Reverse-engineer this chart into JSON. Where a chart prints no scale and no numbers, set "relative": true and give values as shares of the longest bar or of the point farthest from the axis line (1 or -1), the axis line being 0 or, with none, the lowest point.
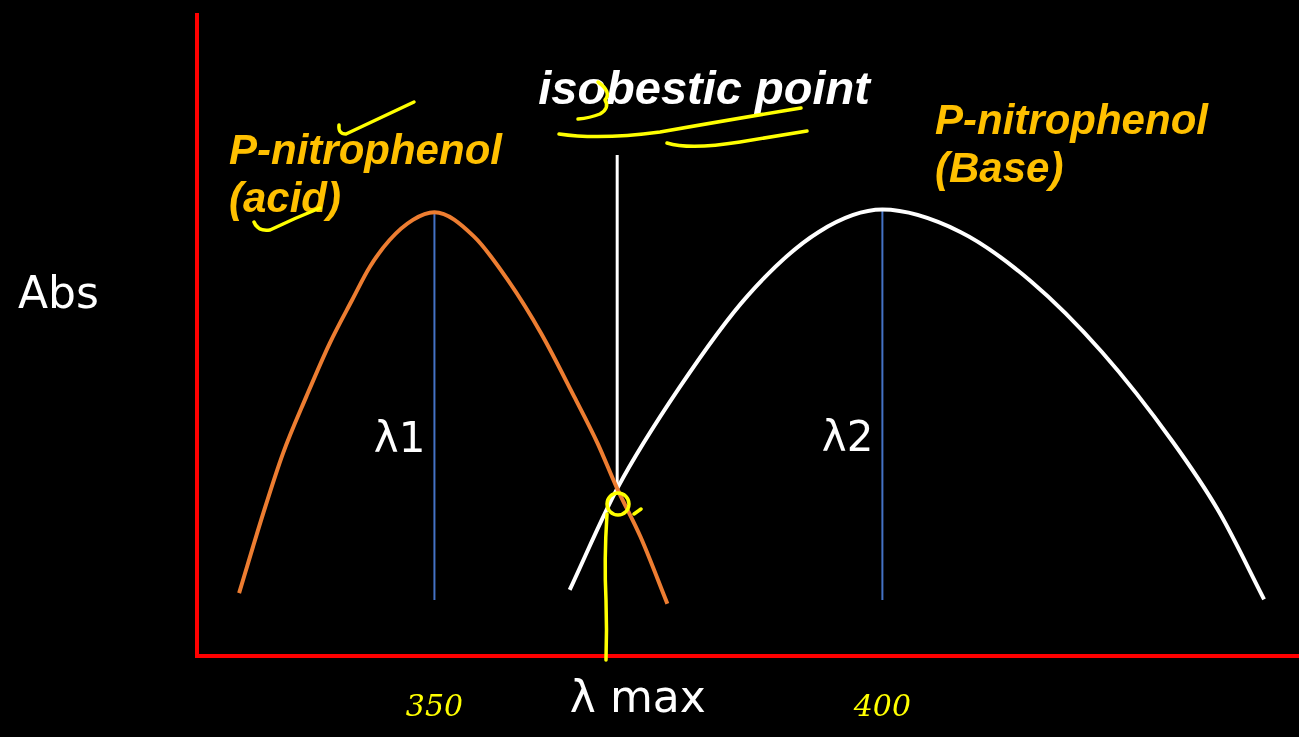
{
  "chart_data": {
    "type": "line",
    "relative": true,
    "xlabel": "λ max",
    "ylabel": "Abs",
    "xlim": [
      323.5,
      446.5
    ],
    "xticks": [
      350,
      400
    ],
    "marker": "none",
    "series": [
      {
        "name": "P-nitrophenol (acid)",
        "color": "#ed7d31",
        "x": [
          328.2,
          330.9,
          333.1,
          335.7,
          338.3,
          340.8,
          342.8,
          345.0,
          347.6,
          350,
          354.4,
          358.2,
          361.9,
          365.6,
          368.2,
          370.4,
          373.0,
          376.0
        ],
        "values": [
          0.141,
          0.32,
          0.454,
          0.581,
          0.7,
          0.797,
          0.872,
          0.932,
          0.977,
          0.994,
          0.94,
          0.842,
          0.723,
          0.581,
          0.477,
          0.375,
          0.267,
          0.117
        ]
      },
      {
        "name": "P-nitrophenol (Base)",
        "color": "#ffffff",
        "x": [
          365.1,
          370.4,
          377.3,
          385.0,
          392.9,
          400.0,
          408.7,
          416.6,
          424.5,
          432.4,
          437.6,
          442.6
        ],
        "values": [
          0.148,
          0.375,
          0.6,
          0.808,
          0.95,
          1,
          0.95,
          0.839,
          0.681,
          0.48,
          0.322,
          0.127
        ]
      }
    ],
    "ref_lines": [
      {
        "axis": "x",
        "value": 350,
        "label": "λ1",
        "color": "#4472c4"
      },
      {
        "axis": "x",
        "value": 400,
        "label": "λ2",
        "color": "#4472c4"
      },
      {
        "axis": "x",
        "value": 370.4,
        "label": "isobestic point",
        "color": "#ffffff"
      }
    ]
  }
}
